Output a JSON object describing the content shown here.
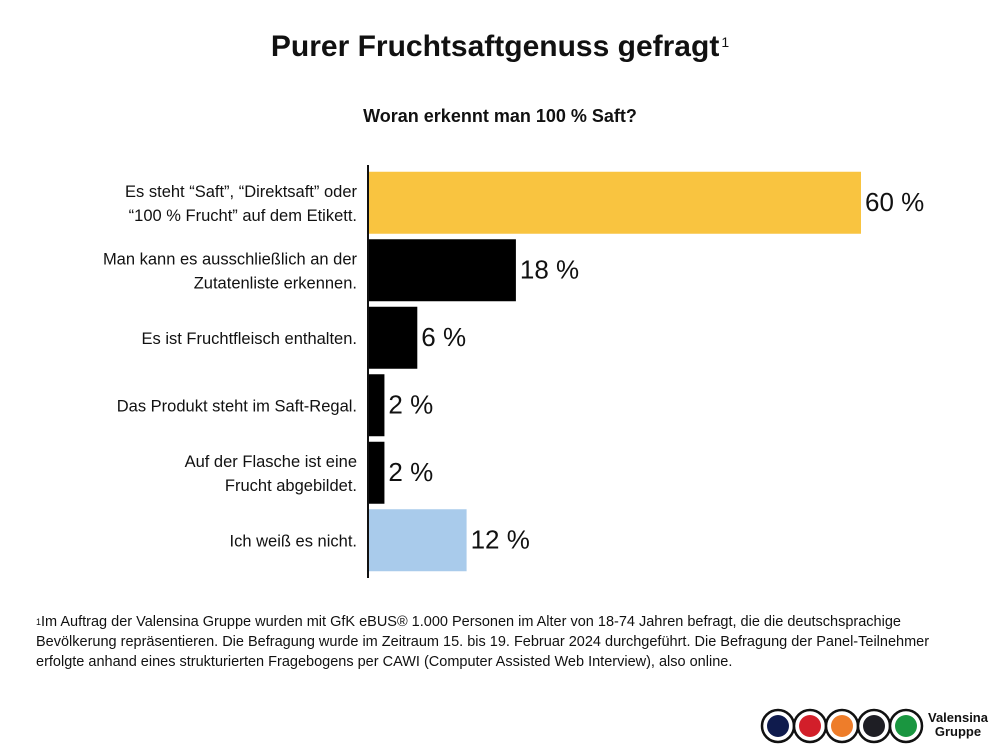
{
  "header": {
    "title": "Purer Fruchtsaftgenuss gefragt",
    "title_footnote_mark": "1",
    "question": "Woran erkennt man 100 % Saft?"
  },
  "chart_data": {
    "type": "bar",
    "orientation": "horizontal",
    "title": "Purer Fruchtsaftgenuss gefragt",
    "subtitle": "Woran erkennt man 100 % Saft?",
    "categories": [
      [
        "Es steht “Saft”, “Direktsaft” oder",
        "“100 % Frucht” auf dem Etikett."
      ],
      [
        "Man kann es ausschließlich an der",
        "Zutatenliste erkennen."
      ],
      [
        "Es ist Fruchtfleisch enthalten."
      ],
      [
        "Das Produkt steht im Saft-Regal."
      ],
      [
        "Auf der Flasche ist eine",
        "Frucht abgebildet."
      ],
      [
        "Ich weiß es nicht."
      ]
    ],
    "values": [
      60,
      18,
      6,
      2,
      2,
      12
    ],
    "value_labels": [
      "60 %",
      "18 %",
      "6 %",
      "2 %",
      "2 %",
      "12 %"
    ],
    "bar_colors": [
      "#F9C440",
      "#000000",
      "#000000",
      "#000000",
      "#000000",
      "#A9CBEB"
    ],
    "xlim": [
      0,
      60
    ],
    "grid": false,
    "legend": "none"
  },
  "footnote": {
    "mark": "1",
    "text": "Im Auftrag der Valensina Gruppe wurden mit GfK eBUS® 1.000 Personen im Alter von 18-74 Jahren befragt, die die deutschsprachige Bevölkerung repräsentieren. Die Befragung wurde im Zeitraum 15. bis 19. Februar 2024 durchgeführt. Die Befragung der Panel-Teilnehmer erfolgte anhand eines strukturierten Fragebogens per CAWI (Computer Assisted Web Interview), also online."
  },
  "logo": {
    "line1": "Valensina",
    "line2": "Gruppe",
    "circle_colors": [
      "#0F1B4D",
      "#D21F2A",
      "#EE7D2A",
      "#1E1E24",
      "#1A9640"
    ]
  }
}
